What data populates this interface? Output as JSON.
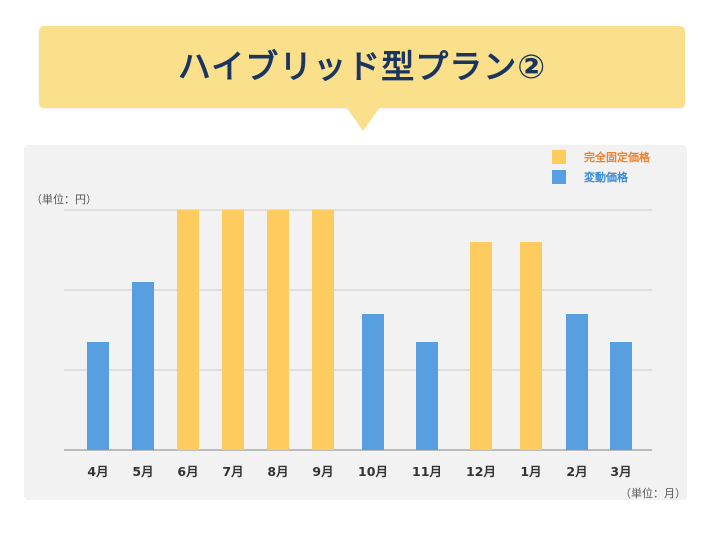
{
  "title": "ハイブリッド型プラン②",
  "chart_data": {
    "type": "bar",
    "categories": [
      "4月",
      "5月",
      "6月",
      "7月",
      "8月",
      "9月",
      "10月",
      "11月",
      "12月",
      "1月",
      "2月",
      "3月"
    ],
    "series": [
      {
        "name": "完全固定価格",
        "color": "#fdcb5e",
        "values": [
          null,
          null,
          3,
          3,
          3,
          3,
          null,
          null,
          2.6,
          2.6,
          null,
          null
        ]
      },
      {
        "name": "変動価格",
        "color": "#589fe2",
        "values": [
          1.35,
          2.1,
          null,
          null,
          null,
          null,
          1.7,
          1.35,
          null,
          null,
          1.7,
          1.35
        ]
      }
    ],
    "ylabel": "（単位：円）",
    "xlabel": "（単位：月）",
    "ylim": [
      0,
      3
    ],
    "y_gridlines": [
      1,
      2,
      3
    ],
    "grid": true,
    "legend_position": "top-right",
    "legend_colors": {
      "完全固定価格": "#f0812d",
      "変動価格": "#3a8ad6"
    }
  }
}
